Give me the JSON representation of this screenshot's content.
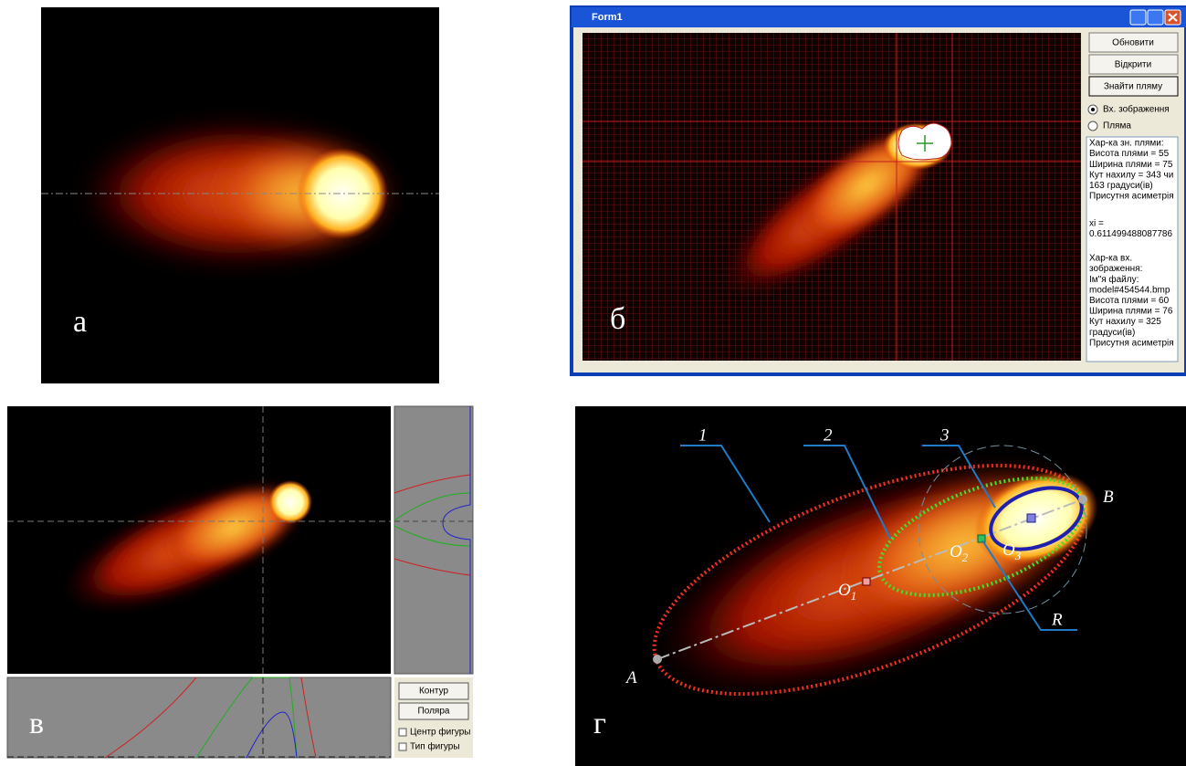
{
  "panel_a": {
    "label": "а"
  },
  "panel_b": {
    "label": "б",
    "window_title": "Form1",
    "buttons": [
      "Обновити",
      "Відкрити",
      "Знайти пляму"
    ],
    "radios": [
      "Вх. зображення",
      "Пляма"
    ],
    "info_blocks": [
      [
        "Хар-ка зн. плями:",
        "Висота плями = 55",
        "Ширина плями = 75",
        "Кут нахилу = 343 чи",
        "163 градуси(ів)",
        "Присутня асиметрія"
      ],
      [
        "xi =",
        "0.611499488087786"
      ],
      [
        "Хар-ка вх.",
        "зображення:",
        "Ім\"я файлу:",
        "model#454544.bmp",
        "Висота плями = 60",
        "Ширина плями = 76",
        "Кут нахилу = 325",
        "градуси(ів)",
        "Присутня асиметрія"
      ]
    ]
  },
  "panel_v": {
    "label": "в",
    "buttons": [
      "Контур",
      "Поляра"
    ],
    "checkboxes": [
      "Центр фигуры",
      "Тип фигуры"
    ]
  },
  "panel_g": {
    "label": "г",
    "curve_labels": [
      "1",
      "2",
      "3"
    ],
    "points": [
      {
        "letter": "A"
      },
      {
        "letter": "B"
      },
      {
        "letter": "O",
        "sub": "1"
      },
      {
        "letter": "O",
        "sub": "2"
      },
      {
        "letter": "O",
        "sub": "3"
      }
    ],
    "radius_label": "R"
  }
}
